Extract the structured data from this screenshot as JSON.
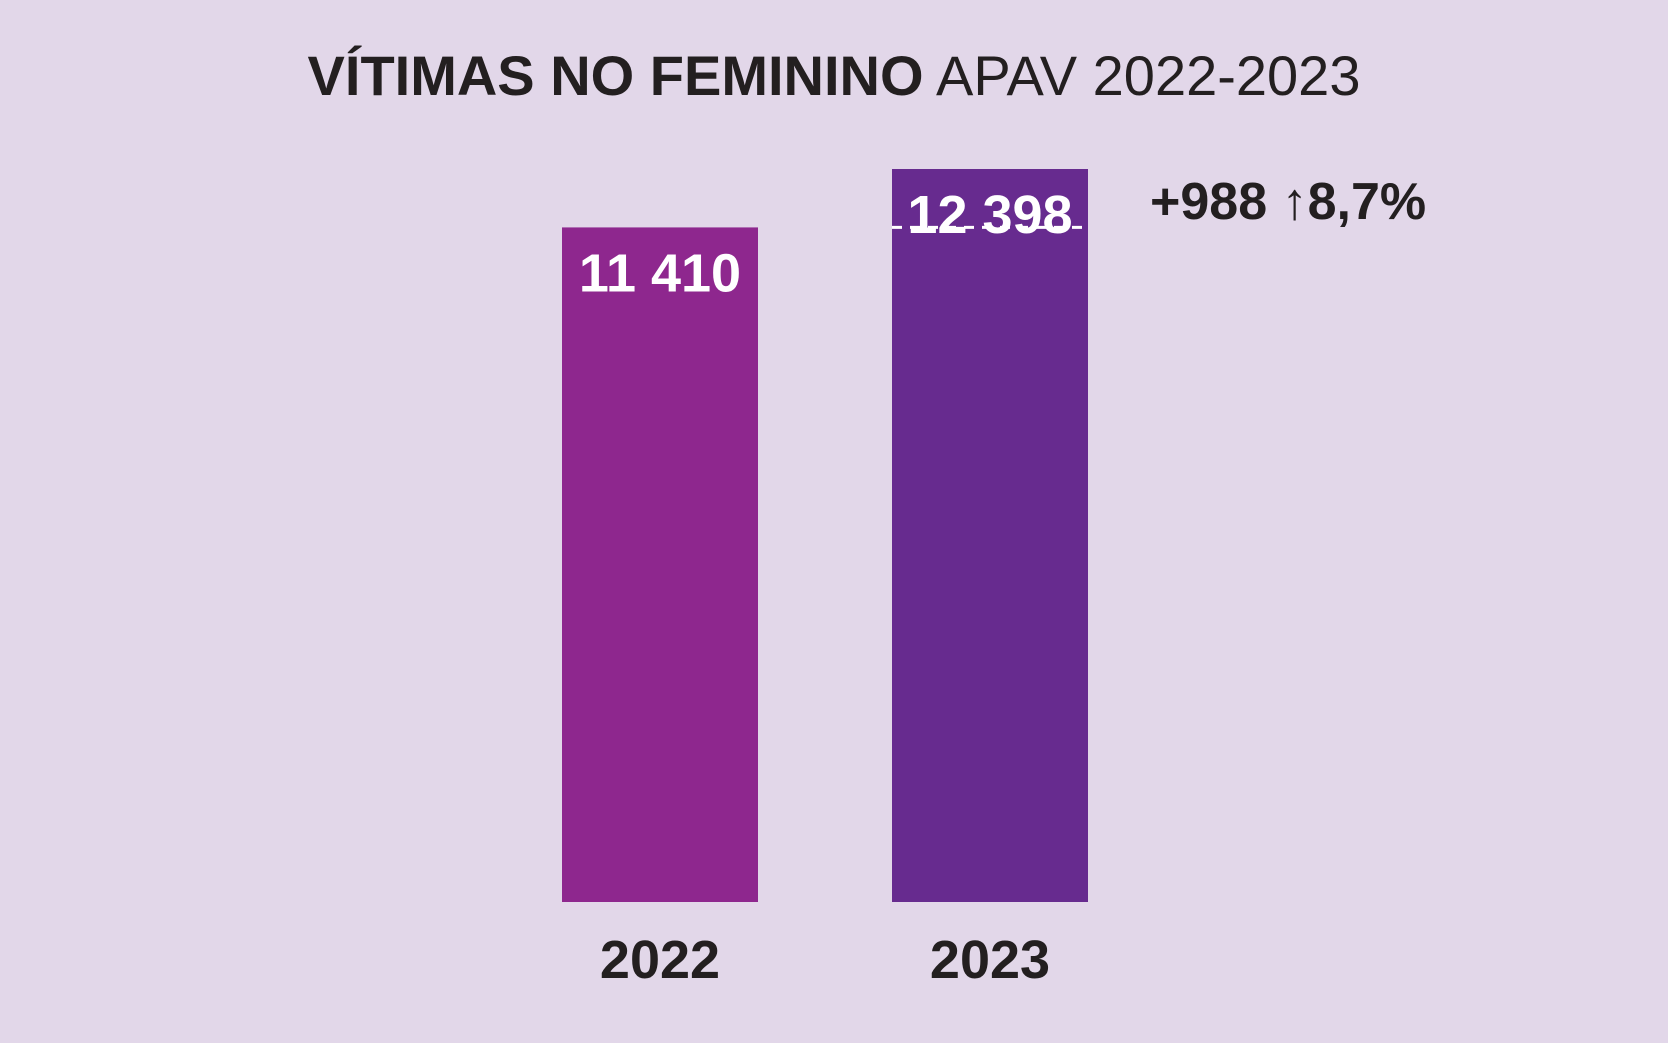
{
  "title": {
    "bold": "VÍTIMAS NO FEMININO",
    "light": "APAV 2022-2023"
  },
  "colors": {
    "background": "#e2d7e9",
    "bar_2022": "#8e278e",
    "bar_2023": "#672b8f",
    "text_dark": "#231f20",
    "text_light": "#ffffff"
  },
  "chart_data": {
    "type": "bar",
    "categories": [
      "2022",
      "2023"
    ],
    "values": [
      11410,
      12398
    ],
    "value_labels": [
      "11 410",
      "12 398"
    ],
    "title": "VÍTIMAS NO FEMININO APAV 2022-2023",
    "annotation": {
      "text": "+988 ↑8,7%",
      "difference": 988,
      "percent_change": 8.7
    },
    "reference_line": {
      "value": 11410,
      "style": "dashed",
      "on_category": "2023"
    },
    "ylim": [
      0,
      12398
    ],
    "grid": false,
    "legend": "none"
  }
}
